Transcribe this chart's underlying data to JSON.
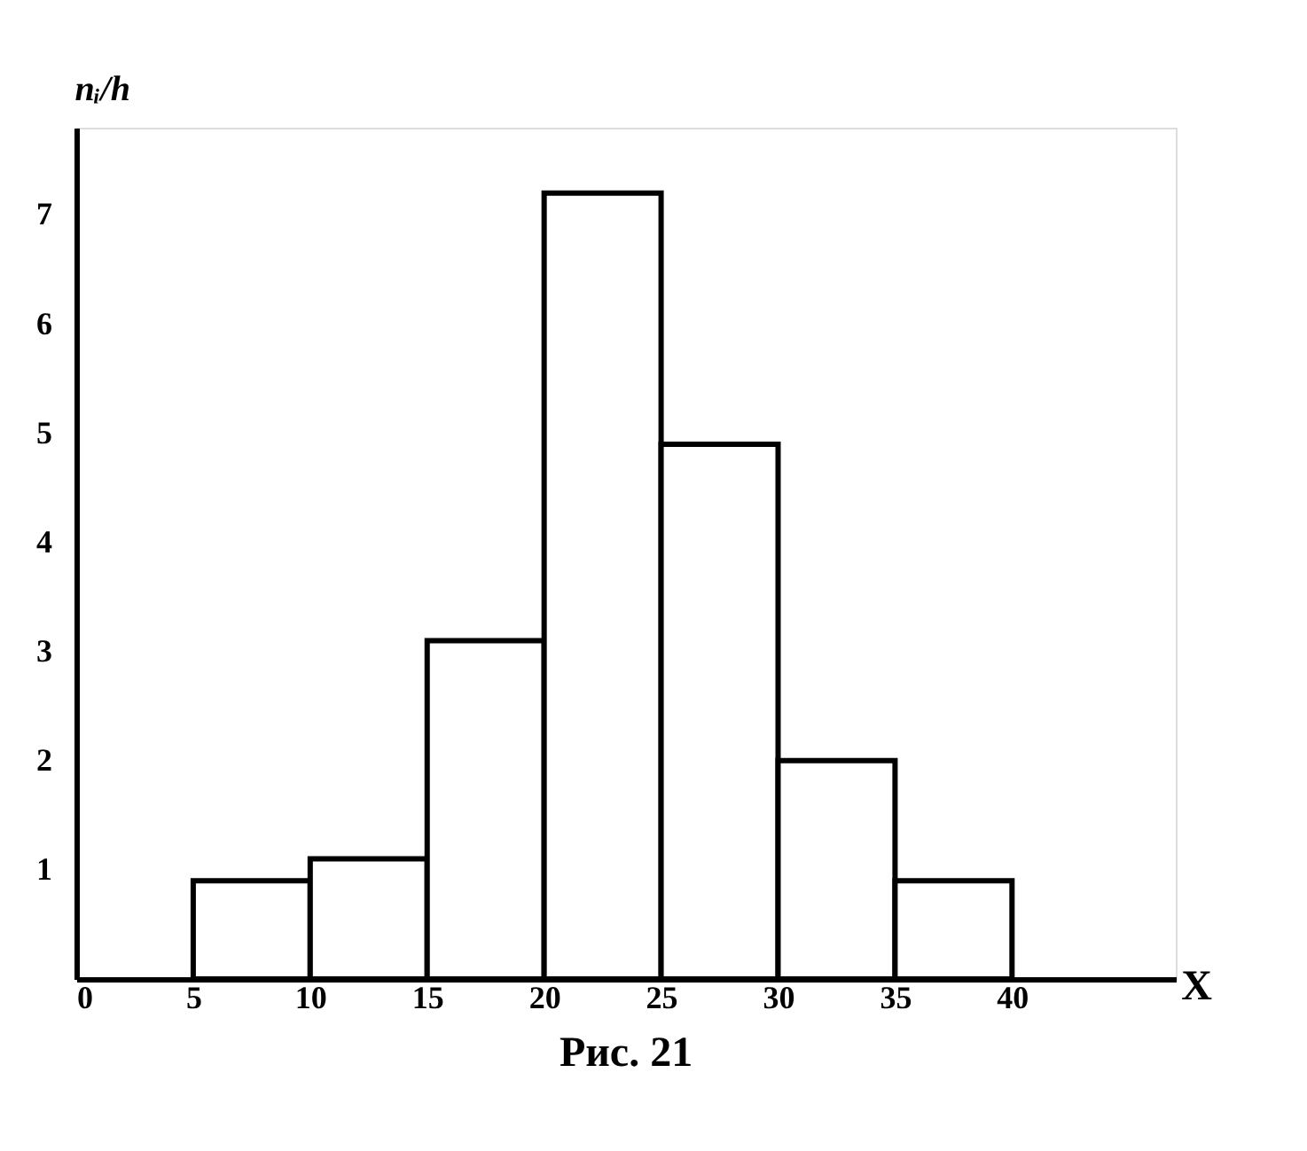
{
  "chart_data": {
    "type": "histogram",
    "bins": [
      5,
      10,
      15,
      20,
      25,
      30,
      35,
      40
    ],
    "values": [
      0.9,
      1.1,
      3.1,
      7.2,
      4.9,
      2.0,
      0.9
    ],
    "color": "#ffffff",
    "xlim": [
      0,
      47
    ],
    "xticks": [
      0,
      5,
      10,
      15,
      20,
      25,
      30,
      35,
      40
    ],
    "ylim": [
      0,
      7.8
    ],
    "yticks": [
      1,
      2,
      3,
      4,
      5,
      6,
      7
    ],
    "xlabel": "X",
    "ylabel": "nᵢ/h",
    "grid": false,
    "annotations": [
      "Рис. 21"
    ]
  }
}
